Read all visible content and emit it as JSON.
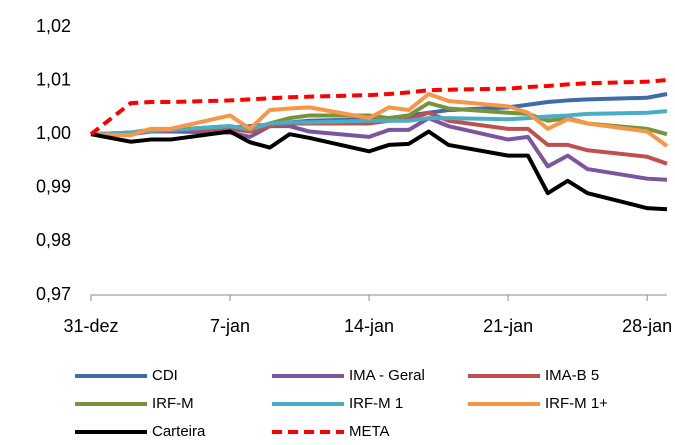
{
  "chart_data": {
    "type": "line",
    "x": [
      0,
      2,
      3,
      4,
      7,
      8,
      9,
      10,
      11,
      14,
      15,
      16,
      17,
      18,
      21,
      22,
      23,
      24,
      25,
      28,
      29
    ],
    "xlim": [
      0,
      29
    ],
    "xticks": [
      {
        "value": 0,
        "label": "31-dez"
      },
      {
        "value": 7,
        "label": "7-jan"
      },
      {
        "value": 14,
        "label": "14-jan"
      },
      {
        "value": 21,
        "label": "21-jan"
      },
      {
        "value": 28,
        "label": "28-jan"
      }
    ],
    "ylim": [
      0.97,
      1.02
    ],
    "yticks": [
      {
        "value": 0.97,
        "label": "0,97"
      },
      {
        "value": 0.98,
        "label": "0,98"
      },
      {
        "value": 0.99,
        "label": "0,99"
      },
      {
        "value": 1.0,
        "label": "1,00"
      },
      {
        "value": 1.01,
        "label": "1,01"
      },
      {
        "value": 1.02,
        "label": "1,02"
      }
    ],
    "grid": false,
    "legend": "bottom",
    "series": [
      {
        "name": "CDI",
        "color": "#3f6ca8",
        "values": [
          1.0,
          1.0003,
          1.0005,
          1.0008,
          1.0012,
          1.0015,
          1.0018,
          1.0022,
          1.0025,
          1.0028,
          1.003,
          1.0035,
          1.004,
          1.0045,
          1.005,
          1.0055,
          1.006,
          1.0063,
          1.0065,
          1.0068,
          1.0075
        ]
      },
      {
        "name": "IMA - Geral",
        "color": "#7b559d",
        "values": [
          1.0,
          1.0,
          1.0005,
          1.0005,
          1.0003,
          0.9995,
          1.0015,
          1.0015,
          1.0005,
          0.9995,
          1.0008,
          1.0008,
          1.003,
          1.0015,
          0.999,
          0.9995,
          0.994,
          0.996,
          0.9935,
          0.9917,
          0.9915
        ]
      },
      {
        "name": "IMA-B 5",
        "color": "#c0504d",
        "values": [
          1.0,
          1.0003,
          1.0008,
          1.0008,
          1.001,
          1.0005,
          1.0015,
          1.002,
          1.002,
          1.002,
          1.0025,
          1.0028,
          1.004,
          1.0025,
          1.001,
          1.001,
          0.998,
          0.998,
          0.997,
          0.9958,
          0.9945
        ]
      },
      {
        "name": "IRF-M",
        "color": "#77933c",
        "values": [
          1.0,
          1.0003,
          1.0008,
          1.0008,
          1.0015,
          1.0008,
          1.002,
          1.003,
          1.0035,
          1.0035,
          1.003,
          1.0035,
          1.0058,
          1.0048,
          1.004,
          1.0038,
          1.0025,
          1.003,
          1.002,
          1.001,
          1.0
        ]
      },
      {
        "name": "IRF-M 1",
        "color": "#4bacc6",
        "values": [
          1.0,
          1.0003,
          1.0006,
          1.0008,
          1.0015,
          1.001,
          1.002,
          1.0022,
          1.0022,
          1.0025,
          1.0025,
          1.0025,
          1.003,
          1.003,
          1.0028,
          1.003,
          1.0033,
          1.0035,
          1.0038,
          1.004,
          1.0043
        ]
      },
      {
        "name": "IRF-M 1+",
        "color": "#f79646",
        "values": [
          1.0,
          0.9998,
          1.001,
          1.001,
          1.0035,
          1.001,
          1.0045,
          1.0048,
          1.005,
          1.003,
          1.005,
          1.0045,
          1.0075,
          1.0062,
          1.0052,
          1.004,
          1.001,
          1.0028,
          1.002,
          1.0005,
          0.9978
        ]
      },
      {
        "name": "Carteira",
        "color": "#000000",
        "values": [
          1.0,
          0.9986,
          0.999,
          0.999,
          1.0005,
          0.9985,
          0.9975,
          1.0,
          0.9993,
          0.9968,
          0.998,
          0.9982,
          1.0005,
          0.998,
          0.996,
          0.996,
          0.989,
          0.9913,
          0.989,
          0.9862,
          0.986
        ]
      },
      {
        "name": "META",
        "color": "#ff0000",
        "dashed": true,
        "values": [
          1.0,
          1.0058,
          1.006,
          1.006,
          1.0063,
          1.0065,
          1.0067,
          1.0069,
          1.007,
          1.0073,
          1.0075,
          1.0078,
          1.0082,
          1.0083,
          1.0085,
          1.0088,
          1.009,
          1.0093,
          1.0095,
          1.0098,
          1.0101
        ]
      }
    ]
  }
}
